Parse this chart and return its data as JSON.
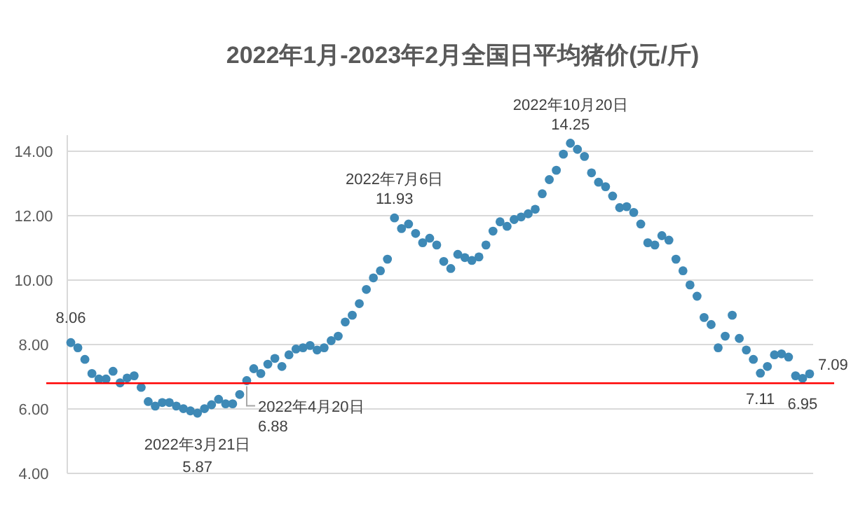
{
  "chart_data": {
    "type": "scatter",
    "title": "2022年1月-2023年2月全国日平均猪价(元/斤)",
    "categories": [
      null,
      null,
      null,
      null,
      null,
      null,
      null,
      null,
      null,
      null,
      null,
      null,
      null,
      null,
      null,
      null,
      null,
      null,
      null,
      null,
      null,
      null,
      null,
      null,
      null,
      null,
      null,
      null,
      null,
      null,
      null,
      null,
      null,
      null,
      null,
      null,
      null,
      null,
      null,
      null,
      null,
      null,
      null,
      null,
      null,
      null,
      null,
      null,
      null,
      null,
      null,
      null,
      null,
      null,
      null,
      null,
      null,
      null,
      null,
      null,
      null,
      null,
      null,
      null,
      null,
      null,
      null,
      null,
      null,
      null,
      null,
      null,
      null,
      null,
      null,
      null,
      null,
      null,
      null,
      null,
      null,
      null,
      null,
      null,
      null,
      null,
      null,
      null,
      null,
      null,
      null,
      null,
      null,
      null,
      null,
      null,
      null,
      null,
      null,
      null,
      null,
      null,
      null,
      null,
      null,
      null
    ],
    "values": [
      8.06,
      7.9,
      7.54,
      7.1,
      6.93,
      6.93,
      7.17,
      6.81,
      6.96,
      7.03,
      6.67,
      6.23,
      6.09,
      6.2,
      6.2,
      6.09,
      6.01,
      5.94,
      5.87,
      6.01,
      6.13,
      6.3,
      6.16,
      6.16,
      6.45,
      6.88,
      7.25,
      7.1,
      7.39,
      7.57,
      7.32,
      7.68,
      7.86,
      7.9,
      7.97,
      7.83,
      7.9,
      8.12,
      8.26,
      8.7,
      8.91,
      9.27,
      9.71,
      10.07,
      10.29,
      10.65,
      11.93,
      11.6,
      11.74,
      11.45,
      11.16,
      11.3,
      11.09,
      10.58,
      10.36,
      10.8,
      10.7,
      10.61,
      10.72,
      11.09,
      11.52,
      11.81,
      11.67,
      11.88,
      11.96,
      12.06,
      12.2,
      12.68,
      13.12,
      13.41,
      13.91,
      14.25,
      14.06,
      13.84,
      13.33,
      13.04,
      12.9,
      12.61,
      12.25,
      12.28,
      12.1,
      11.74,
      11.16,
      11.09,
      11.38,
      11.24,
      10.65,
      10.29,
      9.85,
      9.5,
      8.84,
      8.62,
      7.9,
      8.26,
      8.91,
      8.19,
      7.83,
      7.54,
      7.11,
      7.32,
      7.68,
      7.71,
      7.61,
      7.03,
      6.95,
      7.09
    ],
    "value_labels": [
      "8.06",
      null,
      null,
      null,
      null,
      null,
      null,
      null,
      null,
      null,
      null,
      null,
      null,
      null,
      null,
      null,
      null,
      null,
      "5.87",
      null,
      null,
      null,
      null,
      null,
      null,
      "6.88",
      null,
      null,
      null,
      null,
      null,
      null,
      null,
      null,
      null,
      null,
      null,
      null,
      null,
      null,
      null,
      null,
      null,
      null,
      null,
      null,
      "11.93",
      null,
      null,
      null,
      null,
      null,
      null,
      null,
      null,
      null,
      null,
      null,
      null,
      null,
      null,
      null,
      null,
      null,
      null,
      null,
      null,
      null,
      null,
      null,
      null,
      "14.25",
      null,
      null,
      null,
      null,
      null,
      null,
      null,
      null,
      null,
      null,
      null,
      null,
      null,
      null,
      null,
      null,
      null,
      null,
      null,
      null,
      null,
      null,
      null,
      null,
      null,
      null,
      "7.11",
      null,
      null,
      null,
      null,
      null,
      "6.95",
      "7.09"
    ],
    "color": "#3e89b6",
    "marker": "circle",
    "grid": "y",
    "legend": false,
    "ylim": [
      4,
      14.5
    ],
    "yticks": [
      {
        "value": 4,
        "label": "4.00"
      },
      {
        "value": 6,
        "label": "6.00"
      },
      {
        "value": 8,
        "label": "8.00"
      },
      {
        "value": 10,
        "label": "10.00"
      },
      {
        "value": 12,
        "label": "12.00"
      },
      {
        "value": 14,
        "label": "14.00"
      }
    ],
    "ref_lines": [
      {
        "axis": "y",
        "value": 6.8,
        "color": "#ff0000"
      }
    ],
    "annotations": [
      {
        "text": "2022年3月21日",
        "y": 5.87
      },
      {
        "text": "2022年4月20日",
        "y": 6.88
      },
      {
        "text": "2022年7月6日",
        "y": 11.93
      },
      {
        "text": "2022年10月20日",
        "y": 14.25
      }
    ]
  }
}
